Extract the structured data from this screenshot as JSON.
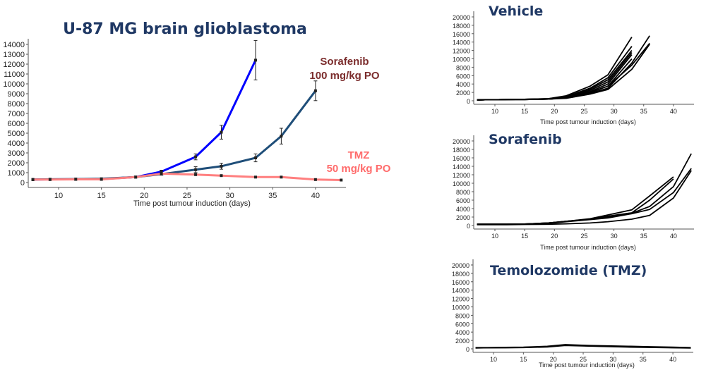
{
  "chart_data": [
    {
      "type": "line",
      "title": "U-87 MG brain glioblastoma",
      "xlabel": "Time post tumour induction (days)",
      "ylabel": "",
      "xlim": [
        6,
        44
      ],
      "ylim": [
        0,
        14000
      ],
      "xticks": [
        10,
        15,
        20,
        25,
        30,
        35,
        40
      ],
      "yticks": [
        0,
        1000,
        2000,
        3000,
        4000,
        5000,
        6000,
        7000,
        8000,
        9000,
        10000,
        11000,
        12000,
        13000,
        14000
      ],
      "grid": false,
      "annotations": [
        {
          "text": "Sorafenib",
          "color": "#7b2c2c"
        },
        {
          "text": "100 mg/kg PO",
          "color": "#7b2c2c"
        },
        {
          "text": "TMZ",
          "color": "#ff6b6b"
        },
        {
          "text": "50 mg/kg PO",
          "color": "#ff6b6b"
        }
      ],
      "series": [
        {
          "color": "#0000ff",
          "x": [
            7,
            9,
            12,
            15,
            19,
            22,
            26,
            29,
            33
          ],
          "y": [
            300,
            320,
            330,
            350,
            550,
            1100,
            2600,
            5100,
            12400
          ],
          "err": [
            0,
            0,
            0,
            0,
            0,
            150,
            300,
            700,
            2000
          ]
        },
        {
          "color": "#1f4e79",
          "x": [
            7,
            9,
            12,
            15,
            19,
            22,
            26,
            29,
            33,
            36,
            40
          ],
          "y": [
            300,
            330,
            350,
            380,
            550,
            850,
            1300,
            1650,
            2500,
            4700,
            9300
          ],
          "err": [
            0,
            0,
            0,
            0,
            0,
            100,
            300,
            300,
            400,
            800,
            1000
          ]
        },
        {
          "color": "#ff7f7f",
          "x": [
            7,
            9,
            12,
            15,
            19,
            22,
            26,
            29,
            33,
            36,
            40,
            43
          ],
          "y": [
            300,
            300,
            320,
            320,
            550,
            900,
            800,
            700,
            550,
            550,
            300,
            250
          ],
          "err": [
            0,
            0,
            0,
            0,
            0,
            0,
            0,
            0,
            0,
            0,
            0,
            0
          ]
        }
      ]
    },
    {
      "type": "line",
      "title": "Vehicle",
      "xlabel": "Time post tumour induction (days)",
      "xlim": [
        6,
        43.5
      ],
      "ylim": [
        0,
        20000
      ],
      "xticks": [
        10,
        15,
        20,
        25,
        30,
        35,
        40
      ],
      "yticks": [
        0,
        2000,
        4000,
        6000,
        8000,
        10000,
        12000,
        14000,
        16000,
        18000,
        20000
      ],
      "color": "#000000",
      "x": [
        7,
        9,
        12,
        15,
        19,
        22,
        26,
        29,
        33,
        36
      ],
      "lines": [
        [
          200,
          250,
          300,
          350,
          500,
          1200,
          3500,
          6200,
          15200
        ],
        [
          200,
          250,
          300,
          350,
          500,
          1000,
          3000,
          5500,
          13000
        ],
        [
          200,
          250,
          300,
          350,
          450,
          900,
          2800,
          5000,
          12000
        ],
        [
          200,
          250,
          300,
          350,
          450,
          900,
          2500,
          4500,
          11500
        ],
        [
          200,
          250,
          300,
          300,
          400,
          800,
          2200,
          4000,
          11000
        ],
        [
          200,
          250,
          300,
          300,
          400,
          700,
          2000,
          3500,
          10000
        ],
        [
          200,
          250,
          300,
          300,
          400,
          700,
          1800,
          3000,
          9000,
          15500
        ],
        [
          200,
          250,
          300,
          300,
          400,
          600,
          1600,
          2700,
          7500,
          13500
        ],
        [
          200,
          250,
          300,
          300,
          400,
          700,
          2000,
          3500,
          8500,
          13700
        ]
      ]
    },
    {
      "type": "line",
      "title": "Sorafenib",
      "xlabel": "Time post tumour induction (days)",
      "xlim": [
        6,
        43.5
      ],
      "ylim": [
        0,
        20000
      ],
      "xticks": [
        10,
        15,
        20,
        25,
        30,
        35,
        40
      ],
      "yticks": [
        0,
        2000,
        4000,
        6000,
        8000,
        10000,
        12000,
        14000,
        16000,
        18000,
        20000
      ],
      "color": "#000000",
      "x": [
        7,
        9,
        12,
        15,
        19,
        22,
        26,
        29,
        33,
        36,
        40,
        43
      ],
      "lines": [
        [
          300,
          300,
          300,
          350,
          600,
          1000,
          1600,
          2500,
          3700,
          7000,
          11500
        ],
        [
          300,
          300,
          300,
          350,
          600,
          1000,
          1500,
          2200,
          3000,
          6000,
          11000
        ],
        [
          300,
          300,
          300,
          350,
          600,
          1000,
          1500,
          2000,
          2900,
          4500,
          9200,
          17000
        ],
        [
          300,
          300,
          300,
          350,
          500,
          900,
          1400,
          1800,
          2800,
          3800,
          7800,
          13500
        ],
        [
          200,
          200,
          200,
          250,
          300,
          400,
          600,
          900,
          1500,
          2400,
          6500,
          13000
        ]
      ]
    },
    {
      "type": "line",
      "title": "Temolozomide (TMZ)",
      "xlabel": "Time post tumour induction (days)",
      "xlim": [
        6,
        43.5
      ],
      "ylim": [
        0,
        20000
      ],
      "xticks": [
        10,
        15,
        20,
        25,
        30,
        35,
        40
      ],
      "yticks": [
        0,
        2000,
        4000,
        6000,
        8000,
        10000,
        12000,
        14000,
        16000,
        18000,
        20000
      ],
      "color": "#000000",
      "x": [
        7,
        9,
        12,
        15,
        19,
        22,
        26,
        29,
        33,
        36,
        40,
        43
      ],
      "lines": [
        [
          300,
          300,
          350,
          400,
          600,
          1000,
          800,
          700,
          600,
          500,
          400,
          300
        ],
        [
          250,
          250,
          300,
          350,
          500,
          900,
          700,
          600,
          500,
          400,
          300,
          250
        ],
        [
          200,
          250,
          250,
          300,
          450,
          800,
          650,
          550,
          400,
          350,
          250,
          200
        ]
      ]
    }
  ]
}
